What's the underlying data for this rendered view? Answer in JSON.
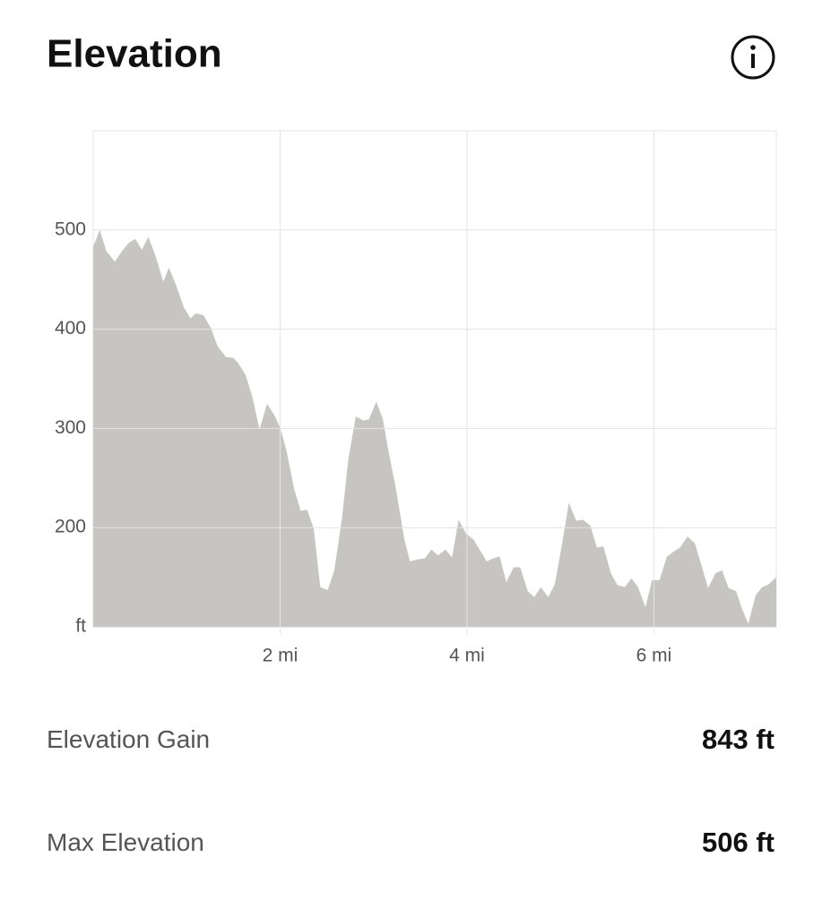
{
  "chart_data": {
    "type": "area",
    "title": "Elevation",
    "color": "#c6c5c1",
    "grid": true,
    "x": [
      0,
      0.07,
      0.14,
      0.23,
      0.31,
      0.38,
      0.45,
      0.52,
      0.59,
      0.67,
      0.75,
      0.81,
      0.88,
      0.97,
      1.04,
      1.1,
      1.18,
      1.26,
      1.33,
      1.42,
      1.5,
      1.55,
      1.63,
      1.7,
      1.78,
      1.86,
      1.94,
      2.0,
      2.07,
      2.15,
      2.22,
      2.29,
      2.36,
      2.43,
      2.51,
      2.58,
      2.66,
      2.73,
      2.81,
      2.89,
      2.95,
      3.03,
      3.1,
      3.16,
      3.24,
      3.33,
      3.39,
      3.47,
      3.55,
      3.62,
      3.69,
      3.77,
      3.84,
      3.91,
      3.99,
      4.07,
      4.14,
      4.21,
      4.28,
      4.35,
      4.42,
      4.5,
      4.57,
      4.65,
      4.72,
      4.79,
      4.87,
      4.94,
      5.02,
      5.09,
      5.17,
      5.24,
      5.32,
      5.39,
      5.46,
      5.54,
      5.61,
      5.69,
      5.76,
      5.83,
      5.91,
      5.98,
      6.06,
      6.14,
      6.2,
      6.28,
      6.36,
      6.44,
      6.5,
      6.58,
      6.66,
      6.73,
      6.8,
      6.88,
      6.94,
      7.01,
      7.09,
      7.16,
      7.23,
      7.31
    ],
    "values": [
      483,
      500,
      479,
      468,
      479,
      487,
      491,
      480,
      493,
      473,
      448,
      462,
      446,
      422,
      411,
      416,
      414,
      401,
      383,
      372,
      371,
      366,
      354,
      333,
      299,
      325,
      313,
      301,
      277,
      239,
      217,
      218,
      199,
      140,
      137,
      157,
      208,
      269,
      312,
      308,
      309,
      327,
      309,
      277,
      239,
      188,
      166,
      168,
      169,
      178,
      172,
      178,
      170,
      208,
      194,
      188,
      177,
      166,
      169,
      171,
      145,
      160,
      160,
      136,
      130,
      140,
      130,
      143,
      185,
      225,
      207,
      208,
      202,
      180,
      181,
      154,
      142,
      140,
      149,
      140,
      120,
      147,
      147,
      171,
      175,
      180,
      191,
      184,
      165,
      139,
      154,
      157,
      139,
      136,
      119,
      103,
      132,
      140,
      143,
      150
    ],
    "xlim": [
      0,
      7.31
    ],
    "ylim": [
      100,
      600
    ],
    "xticks": [
      {
        "value": 2,
        "label": "2 mi"
      },
      {
        "value": 4,
        "label": "4 mi"
      },
      {
        "value": 6,
        "label": "6 mi"
      }
    ],
    "yticks": [
      {
        "value": 100,
        "label": "ft"
      },
      200,
      300,
      400,
      500
    ]
  },
  "stats": [
    {
      "label": "Elevation Gain",
      "value": "843 ft"
    },
    {
      "label": "Max Elevation",
      "value": "506 ft"
    }
  ]
}
